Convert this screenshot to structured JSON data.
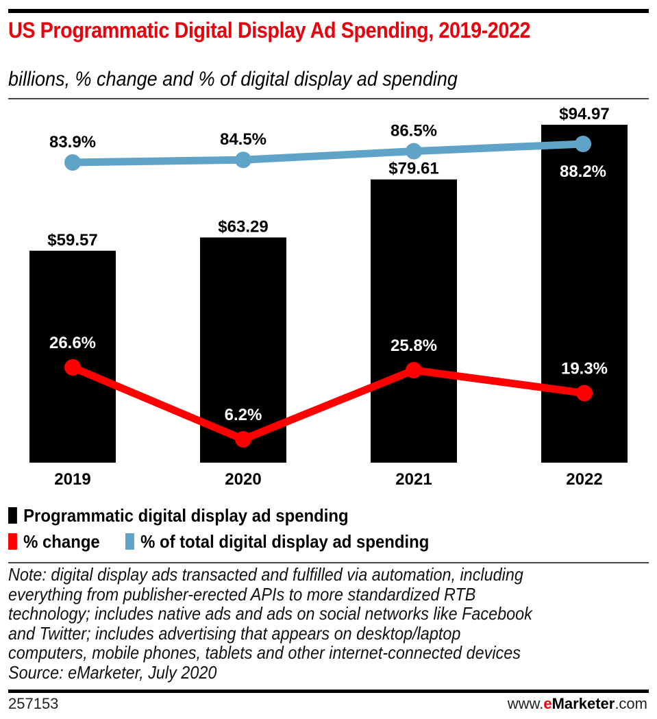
{
  "header": {
    "title": "US Programmatic Digital Display Ad Spending, 2019-2022",
    "subtitle": "billions, % change and % of digital display ad spending"
  },
  "chart_data": {
    "type": "bar",
    "title": "US Programmatic Digital Display Ad Spending, 2019-2022",
    "subtitle": "billions, % change and % of digital display ad spending",
    "categories": [
      "2019",
      "2020",
      "2021",
      "2022"
    ],
    "series": [
      {
        "name": "Programmatic digital display ad spending",
        "type": "bar",
        "color": "#000000",
        "values": [
          59.57,
          63.29,
          79.61,
          94.97
        ],
        "labels": [
          "$59.57",
          "$63.29",
          "$79.61",
          "$94.97"
        ]
      },
      {
        "name": "% change",
        "type": "line",
        "color": "#ff0000",
        "values": [
          26.6,
          6.2,
          25.8,
          19.3
        ],
        "labels": [
          "26.6%",
          "6.2%",
          "25.8%",
          "19.3%"
        ]
      },
      {
        "name": "% of total digital display ad spending",
        "type": "line",
        "color": "#5fa3c8",
        "values": [
          83.9,
          84.5,
          86.5,
          88.2
        ],
        "labels": [
          "83.9%",
          "84.5%",
          "86.5%",
          "88.2%"
        ]
      }
    ],
    "xlabel": "",
    "ylabel": "",
    "ylim": [
      0,
      120
    ],
    "grid": false,
    "legend_position": "bottom-left"
  },
  "legend": {
    "items": [
      {
        "label": "Programmatic digital display ad spending",
        "color": "#000000"
      },
      {
        "label": "% change",
        "color": "#ff0000"
      },
      {
        "label": "% of total digital display ad spending",
        "color": "#5fa3c8"
      }
    ]
  },
  "note": {
    "lines": [
      "Note: digital display ads transacted and fulfilled via automation, including",
      "everything from publisher-erected APIs to more standardized RTB",
      "technology; includes native ads and ads on social networks like Facebook",
      "and Twitter; includes advertising that appears on desktop/laptop",
      "computers, mobile phones, tablets and other internet-connected devices",
      "Source: eMarketer, July 2020"
    ]
  },
  "footer": {
    "chart_id": "257153",
    "site_prefix": "www.",
    "site_brand_e": "e",
    "site_brand_rest": "Marketer",
    "site_suffix": ".com"
  }
}
